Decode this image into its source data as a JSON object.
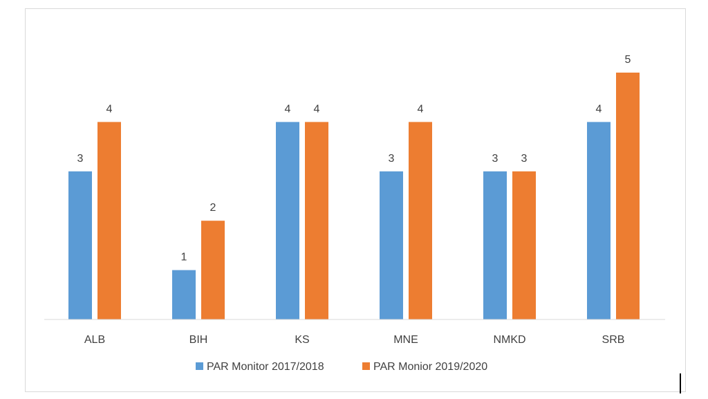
{
  "chart_data": {
    "type": "bar",
    "categories": [
      "ALB",
      "BIH",
      "KS",
      "MNE",
      "NMKD",
      "SRB"
    ],
    "series": [
      {
        "name": "PAR Monitor 2017/2018",
        "values": [
          3,
          1,
          4,
          3,
          3,
          4
        ],
        "color": "#5b9bd5"
      },
      {
        "name": "PAR Monior 2019/2020",
        "values": [
          4,
          2,
          4,
          4,
          3,
          5
        ],
        "color": "#ed7d31"
      }
    ],
    "data_labels": true,
    "ylim": [
      0,
      5.35
    ],
    "grid": false,
    "legend_position": "bottom",
    "axis_color": "#d9d9d9"
  }
}
